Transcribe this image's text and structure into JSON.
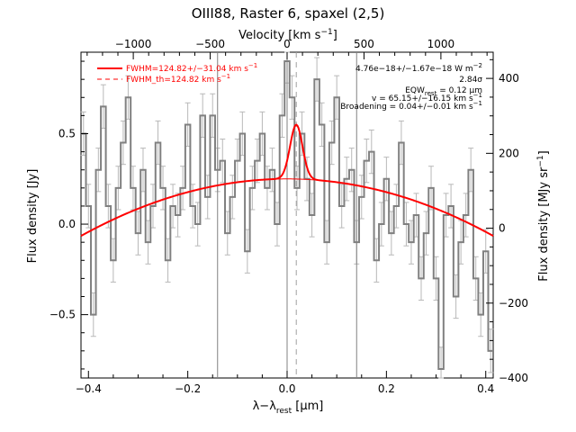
{
  "chart_data": {
    "type": "line",
    "title": "OIII88, Raster 6, spaxel (2,5)",
    "xlabel": "λ−λ",
    "xlabel_sub": "rest",
    "xlabel_unit": " [μm]",
    "ylabel": "Flux density [Jy]",
    "top_axis_label": "Velocity [km s",
    "top_axis_label_sup": "−1",
    "top_axis_label_end": "]",
    "right_axis_label": "Flux density [MJy sr",
    "right_axis_label_sup": "−1",
    "right_axis_label_end": "]",
    "xlim": [
      -0.415,
      0.415
    ],
    "ylim": [
      -0.85,
      0.95
    ],
    "top_xlim": [
      -1340,
      1340
    ],
    "right_ylim": [
      -400,
      470
    ],
    "x_ticks": [
      -0.4,
      -0.2,
      0.0,
      0.2,
      0.4
    ],
    "x_tick_labels": [
      "−0.4",
      "−0.2",
      "0.0",
      "0.2",
      "0.4"
    ],
    "y_ticks": [
      -0.5,
      0.0,
      0.5
    ],
    "y_tick_labels": [
      "−0.5",
      "0.0",
      "0.5"
    ],
    "top_ticks": [
      -1000,
      -500,
      0,
      500,
      1000
    ],
    "top_tick_labels": [
      "−1000",
      "−500",
      "0",
      "500",
      "1000"
    ],
    "right_ticks": [
      -400,
      -200,
      0,
      200,
      400
    ],
    "right_tick_labels": [
      "−400",
      "−200",
      "0",
      "200",
      "400"
    ],
    "vertical_lines": [
      -0.14,
      0.0,
      0.14
    ],
    "dashed_line": 0.0185,
    "legend": {
      "placement": "top-left",
      "entries": [
        {
          "text": "FWHM=124.82+/−31.04 km s",
          "sup": "−1",
          "style": "solid"
        },
        {
          "text": "FWHM_th=124.82 km s",
          "sup": "−1",
          "style": "dashed"
        }
      ]
    },
    "annotations": [
      {
        "text": "4.76e−18+/−1.67e−18 W m",
        "sup": "−2"
      },
      {
        "text": "2.84σ",
        "sup": ""
      },
      {
        "text": "EQW",
        "sub": "rest",
        "text2": " = 0.12 μm"
      },
      {
        "text": "v = 65.15+/−16.15 km s",
        "sup": "−1"
      },
      {
        "text": "Broadening = 0.04+/−0.01 km s",
        "sup": "−1"
      }
    ],
    "series": [
      {
        "style": "step",
        "color": "#808080",
        "x": [
          -0.41,
          -0.4,
          -0.39,
          -0.38,
          -0.37,
          -0.36,
          -0.35,
          -0.34,
          -0.33,
          -0.32,
          -0.31,
          -0.3,
          -0.29,
          -0.28,
          -0.27,
          -0.26,
          -0.25,
          -0.24,
          -0.23,
          -0.22,
          -0.21,
          -0.2,
          -0.19,
          -0.18,
          -0.17,
          -0.16,
          -0.15,
          -0.14,
          -0.13,
          -0.12,
          -0.11,
          -0.1,
          -0.09,
          -0.08,
          -0.07,
          -0.06,
          -0.05,
          -0.04,
          -0.03,
          -0.02,
          -0.01,
          0.0,
          0.01,
          0.02,
          0.03,
          0.04,
          0.05,
          0.06,
          0.07,
          0.08,
          0.09,
          0.1,
          0.11,
          0.12,
          0.13,
          0.14,
          0.15,
          0.16,
          0.17,
          0.18,
          0.19,
          0.2,
          0.21,
          0.22,
          0.23,
          0.24,
          0.25,
          0.26,
          0.27,
          0.28,
          0.29,
          0.3,
          0.31,
          0.32,
          0.33,
          0.34,
          0.35,
          0.36,
          0.37,
          0.38,
          0.39,
          0.4,
          0.41
        ],
        "y": [
          0.5,
          0.1,
          -0.5,
          0.3,
          0.65,
          0.1,
          -0.2,
          0.2,
          0.45,
          0.7,
          0.2,
          -0.05,
          0.3,
          -0.1,
          0.1,
          0.45,
          0.2,
          -0.2,
          0.1,
          0.05,
          0.2,
          0.55,
          0.1,
          0.0,
          0.6,
          0.15,
          0.6,
          0.3,
          0.35,
          -0.05,
          0.15,
          0.35,
          0.5,
          -0.15,
          0.2,
          0.35,
          0.5,
          0.2,
          0.3,
          0.0,
          0.6,
          0.9,
          0.7,
          0.2,
          0.5,
          0.25,
          0.05,
          0.8,
          0.55,
          -0.1,
          0.45,
          0.7,
          0.1,
          0.25,
          0.3,
          -0.1,
          0.15,
          0.35,
          0.4,
          -0.2,
          0.0,
          0.25,
          -0.05,
          0.1,
          0.45,
          0.0,
          -0.1,
          0.05,
          -0.3,
          -0.05,
          0.2,
          -0.3,
          -0.8,
          0.05,
          0.1,
          -0.4,
          -0.1,
          0.05,
          0.3,
          -0.3,
          -0.5,
          -0.15,
          -0.7
        ],
        "err": 0.12
      },
      {
        "style": "line",
        "color": "#ff0000",
        "name": "FWHM=124.82+/−31.04 km s−1",
        "model": "baseline+gaussian",
        "baseline": {
          "type": "quadratic",
          "a": -1.83,
          "c": 0.25
        },
        "gaussian": {
          "amp": 0.3,
          "center": 0.0185,
          "sigma": 0.0125
        }
      },
      {
        "style": "line",
        "color": "#ff0000",
        "model": "baseline",
        "baseline": {
          "type": "quadratic",
          "a": -1.83,
          "c": 0.25
        }
      }
    ]
  }
}
